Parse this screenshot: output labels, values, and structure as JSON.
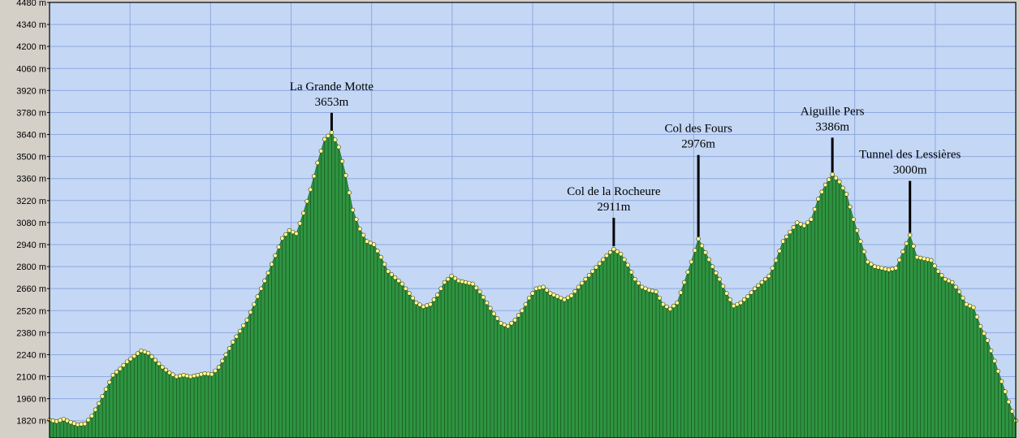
{
  "chart_data": {
    "type": "area",
    "y_unit": "m",
    "ylim": [
      1710,
      4480
    ],
    "y_ticks": [
      {
        "value": 4480,
        "label": "4480 m"
      },
      {
        "value": 4340,
        "label": "4340 m"
      },
      {
        "value": 4200,
        "label": "4200 m"
      },
      {
        "value": 4060,
        "label": "4060 m"
      },
      {
        "value": 3920,
        "label": "3920 m"
      },
      {
        "value": 3780,
        "label": "3780 m"
      },
      {
        "value": 3640,
        "label": "3640 m"
      },
      {
        "value": 3500,
        "label": "3500 m"
      },
      {
        "value": 3360,
        "label": "3360 m"
      },
      {
        "value": 3220,
        "label": "3220 m"
      },
      {
        "value": 3080,
        "label": "3080 m"
      },
      {
        "value": 2940,
        "label": "2940 m"
      },
      {
        "value": 2800,
        "label": "2800 m"
      },
      {
        "value": 2660,
        "label": "2660 m"
      },
      {
        "value": 2520,
        "label": "2520 m"
      },
      {
        "value": 2380,
        "label": "2380 m"
      },
      {
        "value": 2240,
        "label": "2240 m"
      },
      {
        "value": 2100,
        "label": "2100 m"
      },
      {
        "value": 1960,
        "label": "1960 m"
      },
      {
        "value": 1820,
        "label": "1820 m"
      }
    ],
    "x_gridlines": 11,
    "grid": true,
    "colors": {
      "plot_bg": "#c4d7f5",
      "grid": "#8fa9df",
      "fill": "#2e9440",
      "point": "#ffff99",
      "frame_bg": "#d4d0c8"
    },
    "profile": [
      [
        0,
        1825
      ],
      [
        1,
        1815
      ],
      [
        2,
        1830
      ],
      [
        3,
        1810
      ],
      [
        4,
        1795
      ],
      [
        5,
        1800
      ],
      [
        6,
        1850
      ],
      [
        7,
        1930
      ],
      [
        8,
        2020
      ],
      [
        9,
        2110
      ],
      [
        10,
        2150
      ],
      [
        11,
        2195
      ],
      [
        12,
        2230
      ],
      [
        13,
        2265
      ],
      [
        14,
        2250
      ],
      [
        15,
        2205
      ],
      [
        16,
        2160
      ],
      [
        17,
        2125
      ],
      [
        18,
        2100
      ],
      [
        19,
        2110
      ],
      [
        20,
        2100
      ],
      [
        21,
        2110
      ],
      [
        22,
        2120
      ],
      [
        23,
        2115
      ],
      [
        24,
        2160
      ],
      [
        25,
        2240
      ],
      [
        26,
        2320
      ],
      [
        27,
        2390
      ],
      [
        28,
        2460
      ],
      [
        29,
        2560
      ],
      [
        30,
        2660
      ],
      [
        31,
        2760
      ],
      [
        32,
        2870
      ],
      [
        33,
        2980
      ],
      [
        34,
        3030
      ],
      [
        35,
        3010
      ],
      [
        36,
        3140
      ],
      [
        37,
        3290
      ],
      [
        38,
        3460
      ],
      [
        39,
        3610
      ],
      [
        40,
        3653
      ],
      [
        41,
        3560
      ],
      [
        42,
        3380
      ],
      [
        43,
        3160
      ],
      [
        44,
        3040
      ],
      [
        45,
        2960
      ],
      [
        46,
        2940
      ],
      [
        47,
        2860
      ],
      [
        48,
        2770
      ],
      [
        49,
        2730
      ],
      [
        50,
        2690
      ],
      [
        51,
        2630
      ],
      [
        52,
        2570
      ],
      [
        53,
        2545
      ],
      [
        54,
        2560
      ],
      [
        55,
        2620
      ],
      [
        56,
        2700
      ],
      [
        57,
        2740
      ],
      [
        58,
        2710
      ],
      [
        59,
        2700
      ],
      [
        60,
        2690
      ],
      [
        61,
        2640
      ],
      [
        62,
        2570
      ],
      [
        63,
        2500
      ],
      [
        64,
        2440
      ],
      [
        65,
        2420
      ],
      [
        66,
        2460
      ],
      [
        67,
        2520
      ],
      [
        68,
        2600
      ],
      [
        69,
        2660
      ],
      [
        70,
        2670
      ],
      [
        71,
        2630
      ],
      [
        72,
        2610
      ],
      [
        73,
        2590
      ],
      [
        74,
        2615
      ],
      [
        75,
        2670
      ],
      [
        76,
        2720
      ],
      [
        77,
        2770
      ],
      [
        78,
        2820
      ],
      [
        79,
        2870
      ],
      [
        80,
        2911
      ],
      [
        81,
        2880
      ],
      [
        82,
        2810
      ],
      [
        83,
        2720
      ],
      [
        84,
        2670
      ],
      [
        85,
        2650
      ],
      [
        86,
        2640
      ],
      [
        87,
        2560
      ],
      [
        88,
        2530
      ],
      [
        89,
        2570
      ],
      [
        90,
        2700
      ],
      [
        91,
        2830
      ],
      [
        92,
        2976
      ],
      [
        93,
        2890
      ],
      [
        94,
        2800
      ],
      [
        95,
        2720
      ],
      [
        96,
        2630
      ],
      [
        97,
        2550
      ],
      [
        98,
        2570
      ],
      [
        99,
        2610
      ],
      [
        100,
        2660
      ],
      [
        101,
        2700
      ],
      [
        102,
        2740
      ],
      [
        103,
        2840
      ],
      [
        104,
        2960
      ],
      [
        105,
        3020
      ],
      [
        106,
        3080
      ],
      [
        107,
        3060
      ],
      [
        108,
        3100
      ],
      [
        109,
        3230
      ],
      [
        110,
        3320
      ],
      [
        111,
        3386
      ],
      [
        112,
        3340
      ],
      [
        113,
        3260
      ],
      [
        114,
        3100
      ],
      [
        115,
        2960
      ],
      [
        116,
        2830
      ],
      [
        117,
        2800
      ],
      [
        118,
        2790
      ],
      [
        119,
        2780
      ],
      [
        120,
        2790
      ],
      [
        121,
        2895
      ],
      [
        122,
        3000
      ],
      [
        123,
        2860
      ],
      [
        124,
        2850
      ],
      [
        125,
        2840
      ],
      [
        126,
        2770
      ],
      [
        127,
        2720
      ],
      [
        128,
        2700
      ],
      [
        129,
        2640
      ],
      [
        130,
        2560
      ],
      [
        131,
        2540
      ],
      [
        132,
        2420
      ],
      [
        133,
        2330
      ],
      [
        134,
        2200
      ],
      [
        135,
        2070
      ],
      [
        136,
        1940
      ],
      [
        137,
        1820
      ]
    ],
    "peaks": [
      {
        "index": 40,
        "name": "La Grande Motte",
        "elevation": "3653m",
        "marker_top": 3778,
        "marker_bottom": 3665
      },
      {
        "index": 80,
        "name": "Col de la Rocheure",
        "elevation": "2911m",
        "marker_top": 3110,
        "marker_bottom": 2930
      },
      {
        "index": 92,
        "name": "Col des Fours",
        "elevation": "2976m",
        "marker_top": 3510,
        "marker_bottom": 2990
      },
      {
        "index": 111,
        "name": "Aiguille Pers",
        "elevation": "3386m",
        "marker_top": 3620,
        "marker_bottom": 3400
      },
      {
        "index": 122,
        "name": "Tunnel des Lessières",
        "elevation": "3000m",
        "marker_top": 3345,
        "marker_bottom": 3015
      }
    ]
  }
}
